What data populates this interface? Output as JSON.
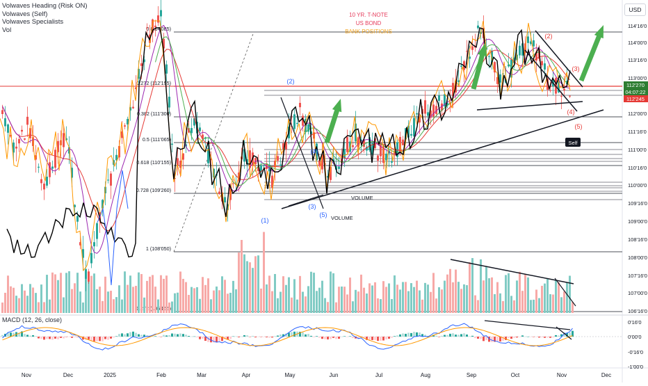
{
  "currency_button": "USD",
  "legend": [
    "Volwaves Heading (Risk ON)",
    "Volwaves (Self)",
    "Volwaves Specialists",
    "Vol"
  ],
  "macd_label": "MACD (12, 26, close)",
  "top_notes": [
    "10 YR. T-NOTE",
    "US BOND",
    "BANK POSITIONS"
  ],
  "colors": {
    "up": "#26a69a",
    "down": "#ef5350",
    "bb": "#2962ff",
    "ma_slow": "#e53935",
    "ma_fast": "#9c27b0",
    "ma_green": "#4caf50",
    "orange": "#ff9800",
    "black_line": "#000000",
    "arrow": "#4caf50",
    "wave_blue": "#2962ff",
    "wave_red": "#ef5350"
  },
  "price_badges": {
    "last": "112'270",
    "countdown": "04:07:22",
    "red": "112'245"
  },
  "chart_data": [
    {
      "type": "candlestick",
      "title": "",
      "y_axis_ticks": [
        "114'16'0",
        "114'00'0",
        "113'16'0",
        "113'00'0",
        "112'16'0",
        "112'00'0",
        "111'16'0",
        "111'00'0",
        "110'16'0",
        "110'00'0",
        "109'16'0",
        "109'00'0",
        "108'16'0",
        "108'00'0",
        "107'16'0",
        "107'00'0",
        "106'16'0"
      ],
      "x_axis_ticks": [
        "Nov",
        "Dec",
        "2025",
        "Feb",
        "Mar",
        "Apr",
        "May",
        "Jun",
        "Jul",
        "Aug",
        "Sep",
        "Oct",
        "Nov",
        "Dec"
      ],
      "ylim": [
        106.5,
        114.5
      ],
      "fibonacci": [
        {
          "label": "0 (114'085)",
          "ratio": 0
        },
        {
          "label": "0.272 (112'195)",
          "ratio": 0.272
        },
        {
          "label": "0.382 (111'300)",
          "ratio": 0.382
        },
        {
          "label": "0.5 (111'065)",
          "ratio": 0.5
        },
        {
          "label": "0.618 (110'155)",
          "ratio": 0.618
        },
        {
          "label": "0.728 (109'260)",
          "ratio": 0.728
        },
        {
          "label": "1 (108'050)",
          "ratio": 1
        },
        {
          "label": "1.272 (106'155)",
          "ratio": 1.272
        }
      ],
      "wave_labels_blue": [
        "(1)",
        "(2)",
        "(3)",
        "(4)",
        "(5)"
      ],
      "wave_labels_red": [
        "(2)",
        "(3)",
        "(4)",
        "(5)"
      ],
      "annotations": [
        "VOLUME",
        "VOLUME",
        "Self"
      ]
    },
    {
      "type": "histogram",
      "title": "MACD (12, 26, close)",
      "y_axis_ticks": [
        "0'16'0",
        "0'00'0",
        "-0'16'0",
        "-1'00'0"
      ]
    }
  ]
}
